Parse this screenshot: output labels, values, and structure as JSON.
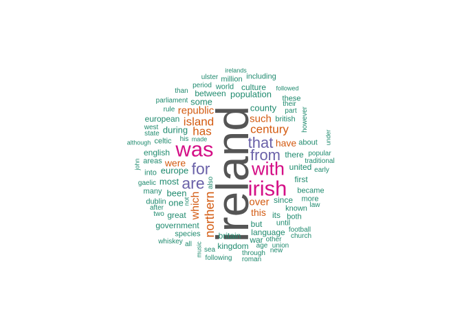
{
  "colors": {
    "gray": "#555555",
    "pink": "#d40f86",
    "purple": "#6a61a8",
    "orange": "#d35a10",
    "teal": "#1f8a6e"
  },
  "words": [
    {
      "text": "ireland",
      "color": "gray",
      "vertical": true
    },
    {
      "text": "was",
      "color": "pink"
    },
    {
      "text": "with",
      "color": "pink"
    },
    {
      "text": "irish",
      "color": "pink"
    },
    {
      "text": "that",
      "color": "purple"
    },
    {
      "text": "from",
      "color": "purple"
    },
    {
      "text": "for",
      "color": "purple"
    },
    {
      "text": "are",
      "color": "purple"
    },
    {
      "text": "century",
      "color": "orange"
    },
    {
      "text": "has",
      "color": "orange"
    },
    {
      "text": "island",
      "color": "orange"
    },
    {
      "text": "republic",
      "color": "orange"
    },
    {
      "text": "such",
      "color": "orange"
    },
    {
      "text": "have",
      "color": "orange"
    },
    {
      "text": "were",
      "color": "orange"
    },
    {
      "text": "over",
      "color": "orange"
    },
    {
      "text": "this",
      "color": "orange"
    },
    {
      "text": "northern",
      "color": "orange",
      "vertical": true
    },
    {
      "text": "which",
      "color": "orange",
      "vertical": true
    },
    {
      "text": "irelands",
      "color": "teal"
    },
    {
      "text": "ulster",
      "color": "teal"
    },
    {
      "text": "million",
      "color": "teal"
    },
    {
      "text": "including",
      "color": "teal"
    },
    {
      "text": "period",
      "color": "teal"
    },
    {
      "text": "world",
      "color": "teal"
    },
    {
      "text": "culture",
      "color": "teal"
    },
    {
      "text": "followed",
      "color": "teal"
    },
    {
      "text": "than",
      "color": "teal"
    },
    {
      "text": "between",
      "color": "teal"
    },
    {
      "text": "population",
      "color": "teal"
    },
    {
      "text": "these",
      "color": "teal"
    },
    {
      "text": "parliament",
      "color": "teal"
    },
    {
      "text": "some",
      "color": "teal"
    },
    {
      "text": "their",
      "color": "teal"
    },
    {
      "text": "county",
      "color": "teal"
    },
    {
      "text": "rule",
      "color": "teal"
    },
    {
      "text": "part",
      "color": "teal"
    },
    {
      "text": "european",
      "color": "teal"
    },
    {
      "text": "british",
      "color": "teal"
    },
    {
      "text": "however",
      "color": "teal",
      "vertical": true
    },
    {
      "text": "west",
      "color": "teal"
    },
    {
      "text": "during",
      "color": "teal"
    },
    {
      "text": "state",
      "color": "teal"
    },
    {
      "text": "made",
      "color": "teal"
    },
    {
      "text": "his",
      "color": "teal"
    },
    {
      "text": "about",
      "color": "teal"
    },
    {
      "text": "under",
      "color": "teal",
      "vertical": true
    },
    {
      "text": "although",
      "color": "teal"
    },
    {
      "text": "celtic",
      "color": "teal"
    },
    {
      "text": "english",
      "color": "teal"
    },
    {
      "text": "there",
      "color": "teal"
    },
    {
      "text": "popular",
      "color": "teal"
    },
    {
      "text": "areas",
      "color": "teal"
    },
    {
      "text": "traditional",
      "color": "teal"
    },
    {
      "text": "john",
      "color": "teal",
      "vertical": true
    },
    {
      "text": "into",
      "color": "teal"
    },
    {
      "text": "europe",
      "color": "teal"
    },
    {
      "text": "united",
      "color": "teal"
    },
    {
      "text": "early",
      "color": "teal"
    },
    {
      "text": "also",
      "color": "teal",
      "vertical": true
    },
    {
      "text": "most",
      "color": "teal"
    },
    {
      "text": "first",
      "color": "teal"
    },
    {
      "text": "gaelic",
      "color": "teal"
    },
    {
      "text": "many",
      "color": "teal"
    },
    {
      "text": "been",
      "color": "teal"
    },
    {
      "text": "became",
      "color": "teal"
    },
    {
      "text": "not",
      "color": "teal",
      "vertical": true
    },
    {
      "text": "more",
      "color": "teal"
    },
    {
      "text": "dublin",
      "color": "teal"
    },
    {
      "text": "one",
      "color": "teal"
    },
    {
      "text": "since",
      "color": "teal"
    },
    {
      "text": "law",
      "color": "teal"
    },
    {
      "text": "after",
      "color": "teal"
    },
    {
      "text": "known",
      "color": "teal"
    },
    {
      "text": "two",
      "color": "teal"
    },
    {
      "text": "great",
      "color": "teal"
    },
    {
      "text": "its",
      "color": "teal"
    },
    {
      "text": "both",
      "color": "teal"
    },
    {
      "text": "government",
      "color": "teal"
    },
    {
      "text": "but",
      "color": "teal"
    },
    {
      "text": "until",
      "color": "teal"
    },
    {
      "text": "football",
      "color": "teal"
    },
    {
      "text": "species",
      "color": "teal"
    },
    {
      "text": "language",
      "color": "teal"
    },
    {
      "text": "church",
      "color": "teal"
    },
    {
      "text": "britain",
      "color": "teal"
    },
    {
      "text": "whiskey",
      "color": "teal"
    },
    {
      "text": "all",
      "color": "teal"
    },
    {
      "text": "war",
      "color": "teal"
    },
    {
      "text": "other",
      "color": "teal"
    },
    {
      "text": "music",
      "color": "teal",
      "vertical": true
    },
    {
      "text": "kingdom",
      "color": "teal"
    },
    {
      "text": "age",
      "color": "teal"
    },
    {
      "text": "union",
      "color": "teal"
    },
    {
      "text": "sea",
      "color": "teal"
    },
    {
      "text": "new",
      "color": "teal"
    },
    {
      "text": "through",
      "color": "teal"
    },
    {
      "text": "following",
      "color": "teal"
    },
    {
      "text": "roman",
      "color": "teal"
    }
  ]
}
